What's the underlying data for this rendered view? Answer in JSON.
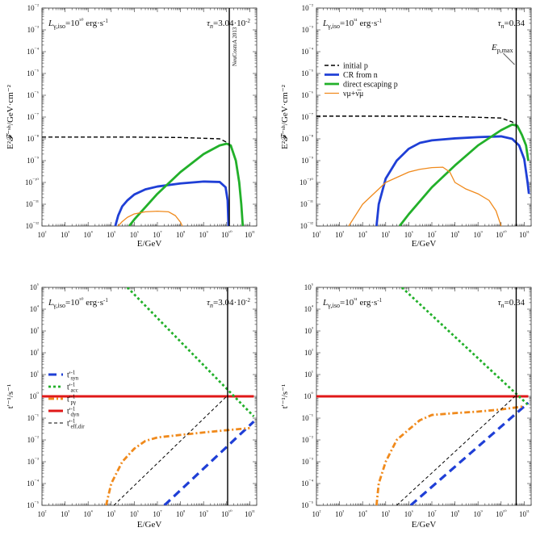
{
  "colors": {
    "initial_p": "#000000",
    "cr_from_n": "#1f3fd6",
    "direct_escaping_p": "#22b02a",
    "neutrino": "#f08a1c",
    "t_syn": "#1f3fd6",
    "t_acc": "#22b02a",
    "t_pgamma": "#f08a1c",
    "t_dyn": "#e01818",
    "t_eff": "#000000",
    "axes": "#333333"
  },
  "chart_data": [
    {
      "id": "panel-top-left",
      "type": "line",
      "x_scale": "log",
      "y_scale": "log",
      "xlim": [
        100.0,
        200000000000.0
      ],
      "ylim": [
        1e-12,
        0.01
      ],
      "xlabel": "E/GeV",
      "ylabel": "E²𝓕⁻ˢʰ/GeV·cm⁻²",
      "x_ticks": [
        "10²",
        "10³",
        "10⁴",
        "10⁵",
        "10⁶",
        "10⁷",
        "10⁸",
        "10⁹",
        "10¹⁰",
        "10¹¹"
      ],
      "y_ticks": [
        "10⁻¹²",
        "10⁻¹¹",
        "10⁻¹⁰",
        "10⁻⁹",
        "10⁻⁸",
        "10⁻⁷",
        "10⁻⁶",
        "10⁻⁵",
        "10⁻⁴",
        "10⁻³",
        "10⁻²"
      ],
      "annotation_left": "Lγ,iso=10⁵⁰ erg·s⁻¹",
      "annotation_right": "τn=3.04·10⁻²",
      "vertical_line_x": 13000000000.0,
      "vertical_text": "NeuCosmA 2013",
      "series": [
        {
          "key": "initial_p",
          "style": "dashed",
          "points": [
            [
              100.0,
              1.2e-08
            ],
            [
              10000.0,
              1.2e-08
            ],
            [
              1000000.0,
              1.2e-08
            ],
            [
              100000000.0,
              1.15e-08
            ],
            [
              5000000000.0,
              1e-08
            ],
            [
              10000000000.0,
              7e-09
            ],
            [
              15000000000.0,
              5e-09
            ],
            [
              25000000000.0,
              1e-09
            ],
            [
              35000000000.0,
              1e-10
            ],
            [
              43000000000.0,
              1e-11
            ],
            [
              50000000000.0,
              1e-12
            ]
          ]
        },
        {
          "key": "cr_from_n",
          "style": "solid",
          "points": [
            [
              150000.0,
              1e-12
            ],
            [
              200000.0,
              3e-12
            ],
            [
              300000.0,
              8e-12
            ],
            [
              500000.0,
              1.5e-11
            ],
            [
              1000000.0,
              2.8e-11
            ],
            [
              3000000.0,
              4.8e-11
            ],
            [
              10000000.0,
              6.5e-11
            ],
            [
              100000000.0,
              9e-11
            ],
            [
              1000000000.0,
              1.1e-10
            ],
            [
              5000000000.0,
              1.05e-10
            ],
            [
              9000000000.0,
              6e-11
            ],
            [
              11000000000.0,
              1.5e-11
            ],
            [
              12000000000.0,
              1e-12
            ]
          ]
        },
        {
          "key": "direct_escaping_p",
          "style": "solid",
          "points": [
            [
              600000.0,
              1e-12
            ],
            [
              1000000.0,
              2e-12
            ],
            [
              10000000.0,
              3e-11
            ],
            [
              100000000.0,
              3e-10
            ],
            [
              1000000000.0,
              2e-09
            ],
            [
              5000000000.0,
              5e-09
            ],
            [
              10000000000.0,
              6e-09
            ],
            [
              15000000000.0,
              5e-09
            ],
            [
              25000000000.0,
              1e-09
            ],
            [
              35000000000.0,
              1e-10
            ],
            [
              43000000000.0,
              1e-11
            ],
            [
              50000000000.0,
              1e-12
            ]
          ]
        },
        {
          "key": "neutrino",
          "style": "solid",
          "points": [
            [
              200000.0,
              1e-12
            ],
            [
              300000.0,
              1.6e-12
            ],
            [
              500000.0,
              2.5e-12
            ],
            [
              1000000.0,
              3.6e-12
            ],
            [
              3000000.0,
              4.5e-12
            ],
            [
              10000000.0,
              4.8e-12
            ],
            [
              30000000.0,
              4.5e-12
            ],
            [
              60000000.0,
              3e-12
            ],
            [
              100000000.0,
              1.5e-12
            ],
            [
              120000000.0,
              1e-12
            ]
          ]
        }
      ]
    },
    {
      "id": "panel-top-right",
      "type": "line",
      "x_scale": "log",
      "y_scale": "log",
      "xlim": [
        100.0,
        200000000000.0
      ],
      "ylim": [
        1e-12,
        0.01
      ],
      "xlabel": "E/GeV",
      "ylabel": "E²𝓕⁻ˢʰ/GeV·cm⁻²",
      "x_ticks": [
        "10²",
        "10³",
        "10⁴",
        "10⁵",
        "10⁶",
        "10⁷",
        "10⁸",
        "10⁹",
        "10¹⁰",
        "10¹¹"
      ],
      "y_ticks": [
        "10⁻¹²",
        "10⁻¹¹",
        "10⁻¹⁰",
        "10⁻⁹",
        "10⁻⁸",
        "10⁻⁷",
        "10⁻⁶",
        "10⁻⁵",
        "10⁻⁴",
        "10⁻³",
        "10⁻²"
      ],
      "annotation_left": "Lγ,iso=10⁵¹ erg·s⁻¹",
      "annotation_right": "τn=0.34",
      "vertical_line_x": 45000000000.0,
      "vertical_label": "Ep,max",
      "legend": [
        {
          "key": "initial_p",
          "label": "initial p",
          "style": "dashed"
        },
        {
          "key": "cr_from_n",
          "label": "CR from n",
          "style": "solid"
        },
        {
          "key": "direct_escaping_p",
          "label": "direct escaping p",
          "style": "solid"
        },
        {
          "key": "neutrino",
          "label": "νμ+ν̅μ",
          "style": "solid"
        }
      ],
      "series": [
        {
          "key": "initial_p",
          "style": "dashed",
          "points": [
            [
              100.0,
              1.1e-07
            ],
            [
              10000.0,
              1.1e-07
            ],
            [
              1000000.0,
              1.1e-07
            ],
            [
              100000000.0,
              1.05e-07
            ],
            [
              10000000000.0,
              9e-08
            ],
            [
              30000000000.0,
              6e-08
            ],
            [
              50000000000.0,
              4e-08
            ],
            [
              80000000000.0,
              1.5e-08
            ],
            [
              120000000000.0,
              5e-09
            ],
            [
              150000000000.0,
              1e-09
            ]
          ]
        },
        {
          "key": "cr_from_n",
          "style": "solid",
          "points": [
            [
              40000.0,
              1e-12
            ],
            [
              50000.0,
              1e-11
            ],
            [
              100000.0,
              1.5e-10
            ],
            [
              300000.0,
              1e-09
            ],
            [
              1000000.0,
              3.5e-09
            ],
            [
              3000000.0,
              6.5e-09
            ],
            [
              10000000.0,
              8.5e-09
            ],
            [
              100000000.0,
              1.05e-08
            ],
            [
              1000000000.0,
              1.2e-08
            ],
            [
              10000000000.0,
              1.3e-08
            ],
            [
              30000000000.0,
              1e-08
            ],
            [
              60000000000.0,
              5e-09
            ],
            [
              100000000000.0,
              1.2e-09
            ],
            [
              140000000000.0,
              1e-10
            ],
            [
              160000000000.0,
              3e-11
            ]
          ]
        },
        {
          "key": "direct_escaping_p",
          "style": "solid",
          "points": [
            [
              400000.0,
              1e-12
            ],
            [
              1000000.0,
              3.5e-12
            ],
            [
              10000000.0,
              6e-11
            ],
            [
              100000000.0,
              6e-10
            ],
            [
              1000000000.0,
              5e-09
            ],
            [
              10000000000.0,
              2.5e-08
            ],
            [
              30000000000.0,
              4.5e-08
            ],
            [
              50000000000.0,
              4e-08
            ],
            [
              80000000000.0,
              1.5e-08
            ],
            [
              120000000000.0,
              5e-09
            ],
            [
              150000000000.0,
              1e-09
            ]
          ]
        },
        {
          "key": "neutrino",
          "style": "solid",
          "points": [
            [
              2500.0,
              1e-12
            ],
            [
              10000.0,
              1e-11
            ],
            [
              100000.0,
              1e-10
            ],
            [
              1000000.0,
              3e-10
            ],
            [
              3000000.0,
              4e-10
            ],
            [
              10000000.0,
              4.8e-10
            ],
            [
              30000000.0,
              5e-10
            ],
            [
              60000000.0,
              3e-10
            ],
            [
              100000000.0,
              1e-10
            ],
            [
              300000000.0,
              5e-11
            ],
            [
              1000000000.0,
              3e-11
            ],
            [
              3000000000.0,
              1.5e-11
            ],
            [
              6000000000.0,
              5e-12
            ],
            [
              10000000000.0,
              1e-12
            ]
          ]
        }
      ]
    },
    {
      "id": "panel-bottom-left",
      "type": "line",
      "x_scale": "log",
      "y_scale": "log",
      "xlim": [
        100.0,
        200000000000.0
      ],
      "ylim": [
        1e-05,
        100000.0
      ],
      "xlabel": "E/GeV",
      "ylabel": "t'⁻¹/s⁻¹",
      "x_ticks": [
        "10²",
        "10³",
        "10⁴",
        "10⁵",
        "10⁶",
        "10⁷",
        "10⁸",
        "10⁹",
        "10¹⁰",
        "10¹¹"
      ],
      "y_ticks": [
        "10⁻⁵",
        "10⁻⁴",
        "0.001",
        "0.01",
        "0.1",
        "1",
        "10",
        "100",
        "1000",
        "10⁴",
        "10⁵"
      ],
      "y_tick_labels_display": [
        "10⁻⁵",
        "10⁻⁴",
        "10⁻³",
        "10⁻²",
        "10⁻¹",
        "10⁰",
        "10¹",
        "10²",
        "10³",
        "10⁴",
        "10⁵"
      ],
      "annotation_left": "Lγ,iso=10⁵⁰ erg·s⁻¹",
      "annotation_right": "τn=3.04·10⁻²",
      "vertical_line_x": 11000000000.0,
      "legend": [
        {
          "key": "t_syn",
          "label": "t'⁻¹syn",
          "style": "dashed-long"
        },
        {
          "key": "t_acc",
          "label": "t'⁻¹acc",
          "style": "dotted"
        },
        {
          "key": "t_pgamma",
          "label": "t'⁻¹pγ",
          "style": "dashdot"
        },
        {
          "key": "t_dyn",
          "label": "t'⁻¹dyn",
          "style": "solid"
        },
        {
          "key": "t_eff",
          "label": "t'⁻¹eff,dir",
          "style": "dashed-thin"
        }
      ],
      "series": [
        {
          "key": "t_dyn",
          "style": "solid",
          "points": [
            [
              100.0,
              1
            ],
            [
              150000000000.0,
              1
            ]
          ]
        },
        {
          "key": "t_acc",
          "style": "dotted",
          "points": [
            [
              500000.0,
              100000.0
            ],
            [
              150000000000.0,
              0.12
            ]
          ]
        },
        {
          "key": "t_syn",
          "style": "dashed-long",
          "points": [
            [
              20000000.0,
              1e-05
            ],
            [
              150000000000.0,
              0.07
            ]
          ]
        },
        {
          "key": "t_pgamma",
          "style": "dashdot",
          "points": [
            [
              60000.0,
              1e-05
            ],
            [
              100000.0,
              0.0001
            ],
            [
              300000.0,
              0.001
            ],
            [
              1000000.0,
              0.004
            ],
            [
              3000000.0,
              0.009
            ],
            [
              10000000.0,
              0.013
            ],
            [
              100000000.0,
              0.017
            ],
            [
              1000000000.0,
              0.022
            ],
            [
              10000000000.0,
              0.028
            ],
            [
              100000000000.0,
              0.035
            ]
          ]
        },
        {
          "key": "t_eff",
          "style": "dashed-thin",
          "points": [
            [
              130000.0,
              1e-05
            ],
            [
              10000000000.0,
              1
            ]
          ]
        }
      ]
    },
    {
      "id": "panel-bottom-right",
      "type": "line",
      "x_scale": "log",
      "y_scale": "log",
      "xlim": [
        100.0,
        200000000000.0
      ],
      "ylim": [
        1e-05,
        100000.0
      ],
      "xlabel": "E/GeV",
      "ylabel": "t'⁻¹/s⁻¹",
      "x_ticks": [
        "10²",
        "10³",
        "10⁴",
        "10⁵",
        "10⁶",
        "10⁷",
        "10⁸",
        "10⁹",
        "10¹⁰",
        "10¹¹"
      ],
      "y_ticks": [
        "10⁻⁵",
        "10⁻⁴",
        "0.001",
        "0.01",
        "0.1",
        "1",
        "10",
        "100",
        "1000",
        "10⁴",
        "10⁵"
      ],
      "y_tick_labels_display": [
        "10⁻⁵",
        "10⁻⁴",
        "10⁻³",
        "10⁻²",
        "10⁻¹",
        "10⁰",
        "10¹",
        "10²",
        "10³",
        "10⁴",
        "10⁵"
      ],
      "annotation_left": "Lγ,iso=10⁵¹ erg·s⁻¹",
      "annotation_right": "τn=0.34",
      "vertical_line_x": 45000000000.0,
      "series": [
        {
          "key": "t_dyn",
          "style": "solid",
          "points": [
            [
              100.0,
              1
            ],
            [
              150000000000.0,
              1
            ]
          ]
        },
        {
          "key": "t_acc",
          "style": "dotted",
          "points": [
            [
              500000.0,
              100000.0
            ],
            [
              150000000000.0,
              0.4
            ]
          ]
        },
        {
          "key": "t_syn",
          "style": "dashed-long",
          "points": [
            [
              1200000.0,
              1e-05
            ],
            [
              150000000000.0,
              0.5
            ]
          ]
        },
        {
          "key": "t_pgamma",
          "style": "dashdot",
          "points": [
            [
              40000.0,
              1e-05
            ],
            [
              50000.0,
              0.0001
            ],
            [
              100000.0,
              0.001
            ],
            [
              300000.0,
              0.01
            ],
            [
              1000000.0,
              0.03
            ],
            [
              3000000.0,
              0.08
            ],
            [
              10000000.0,
              0.14
            ],
            [
              100000000.0,
              0.17
            ],
            [
              1000000000.0,
              0.2
            ],
            [
              10000000000.0,
              0.25
            ],
            [
              100000000000.0,
              0.35
            ]
          ]
        },
        {
          "key": "t_eff",
          "style": "dashed-thin",
          "points": [
            [
              300000.0,
              1e-05
            ],
            [
              40000000000.0,
              1
            ]
          ]
        }
      ]
    }
  ]
}
